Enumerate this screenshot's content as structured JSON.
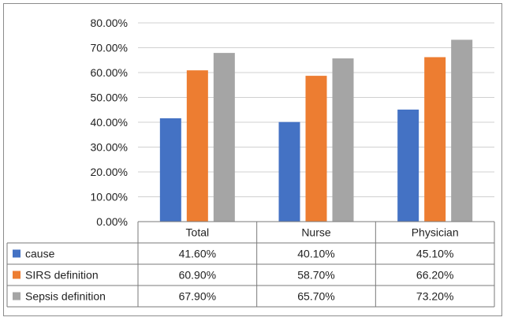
{
  "chart_data": {
    "type": "bar",
    "categories": [
      "Total",
      "Nurse",
      "Physician"
    ],
    "series": [
      {
        "name": "cause",
        "values": [
          41.6,
          40.1,
          45.1
        ],
        "labels": [
          "41.60%",
          "40.10%",
          "45.10%"
        ],
        "color": "#4472c4"
      },
      {
        "name": "SIRS definition",
        "values": [
          60.9,
          58.7,
          66.2
        ],
        "labels": [
          "60.90%",
          "58.70%",
          "66.20%"
        ],
        "color": "#ed7d31"
      },
      {
        "name": "Sepsis definition",
        "values": [
          67.9,
          65.7,
          73.2
        ],
        "labels": [
          "67.90%",
          "65.70%",
          "73.20%"
        ],
        "color": "#a5a5a5"
      }
    ],
    "ylim": [
      0,
      80
    ],
    "yticks": [
      "0.00%",
      "10.00%",
      "20.00%",
      "30.00%",
      "40.00%",
      "50.00%",
      "60.00%",
      "70.00%",
      "80.00%"
    ],
    "grid": true,
    "legend": "data-table"
  }
}
